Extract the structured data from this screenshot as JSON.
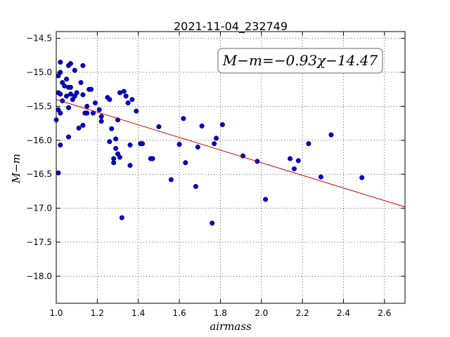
{
  "chart_data": {
    "type": "scatter",
    "title": "2021-11-04_232749",
    "xlabel": "airmass",
    "ylabel": "M−m",
    "xlim": [
      1.0,
      2.7
    ],
    "ylim": [
      -18.4,
      -14.4
    ],
    "y_inverted": true,
    "grid": true,
    "x_ticks": [
      "1.0",
      "1.2",
      "1.4",
      "1.6",
      "1.8",
      "2.0",
      "2.2",
      "2.4",
      "2.6"
    ],
    "y_ticks": [
      "−14.5",
      "−15.0",
      "−15.5",
      "−16.0",
      "−16.5",
      "−17.0",
      "−17.5",
      "−18.0"
    ],
    "annotation": "M−m=−0.93χ−14.47",
    "fit_line": {
      "slope": -0.93,
      "intercept": -14.47,
      "color": "#cc0000"
    },
    "point_color": "#0000cc",
    "points": [
      [
        1.0,
        -15.7
      ],
      [
        1.01,
        -15.55
      ],
      [
        1.01,
        -15.3
      ],
      [
        1.01,
        -15.05
      ],
      [
        1.02,
        -15.0
      ],
      [
        1.02,
        -14.85
      ],
      [
        1.02,
        -15.6
      ],
      [
        1.02,
        -16.07
      ],
      [
        1.01,
        -16.48
      ],
      [
        1.02,
        -15.32
      ],
      [
        1.03,
        -15.15
      ],
      [
        1.03,
        -15.42
      ],
      [
        1.04,
        -15.2
      ],
      [
        1.05,
        -15.35
      ],
      [
        1.05,
        -15.1
      ],
      [
        1.06,
        -14.9
      ],
      [
        1.06,
        -15.22
      ],
      [
        1.06,
        -15.52
      ],
      [
        1.06,
        -15.95
      ],
      [
        1.07,
        -14.87
      ],
      [
        1.07,
        -15.22
      ],
      [
        1.07,
        -15.32
      ],
      [
        1.08,
        -15.4
      ],
      [
        1.09,
        -14.97
      ],
      [
        1.09,
        -15.35
      ],
      [
        1.1,
        -15.3
      ],
      [
        1.11,
        -15.82
      ],
      [
        1.12,
        -15.15
      ],
      [
        1.13,
        -15.78
      ],
      [
        1.13,
        -15.33
      ],
      [
        1.13,
        -14.9
      ],
      [
        1.14,
        -15.6
      ],
      [
        1.15,
        -15.5
      ],
      [
        1.15,
        -15.6
      ],
      [
        1.16,
        -15.25
      ],
      [
        1.17,
        -15.25
      ],
      [
        1.18,
        -15.6
      ],
      [
        1.19,
        -15.45
      ],
      [
        1.21,
        -15.55
      ],
      [
        1.22,
        -15.72
      ],
      [
        1.22,
        -15.65
      ],
      [
        1.25,
        -15.37
      ],
      [
        1.26,
        -15.4
      ],
      [
        1.26,
        -16.02
      ],
      [
        1.27,
        -15.83
      ],
      [
        1.28,
        -16.27
      ],
      [
        1.28,
        -16.33
      ],
      [
        1.29,
        -15.98
      ],
      [
        1.29,
        -16.12
      ],
      [
        1.3,
        -15.7
      ],
      [
        1.3,
        -16.2
      ],
      [
        1.31,
        -15.3
      ],
      [
        1.31,
        -16.25
      ],
      [
        1.32,
        -17.14
      ],
      [
        1.33,
        -15.28
      ],
      [
        1.34,
        -15.35
      ],
      [
        1.35,
        -15.45
      ],
      [
        1.36,
        -16.07
      ],
      [
        1.36,
        -16.37
      ],
      [
        1.37,
        -15.4
      ],
      [
        1.39,
        -15.57
      ],
      [
        1.41,
        -16.05
      ],
      [
        1.42,
        -16.05
      ],
      [
        1.46,
        -16.27
      ],
      [
        1.47,
        -16.27
      ],
      [
        1.5,
        -15.8
      ],
      [
        1.56,
        -16.58
      ],
      [
        1.6,
        -16.06
      ],
      [
        1.62,
        -15.68
      ],
      [
        1.63,
        -16.33
      ],
      [
        1.68,
        -16.68
      ],
      [
        1.69,
        -16.1
      ],
      [
        1.71,
        -15.79
      ],
      [
        1.76,
        -17.22
      ],
      [
        1.77,
        -16.05
      ],
      [
        1.78,
        -15.97
      ],
      [
        1.81,
        -15.77
      ],
      [
        1.91,
        -16.23
      ],
      [
        1.98,
        -16.31
      ],
      [
        2.02,
        -16.87
      ],
      [
        2.14,
        -16.27
      ],
      [
        2.16,
        -16.42
      ],
      [
        2.18,
        -16.3
      ],
      [
        2.23,
        -16.05
      ],
      [
        2.29,
        -16.54
      ],
      [
        2.34,
        -15.92
      ],
      [
        2.49,
        -16.55
      ]
    ]
  }
}
